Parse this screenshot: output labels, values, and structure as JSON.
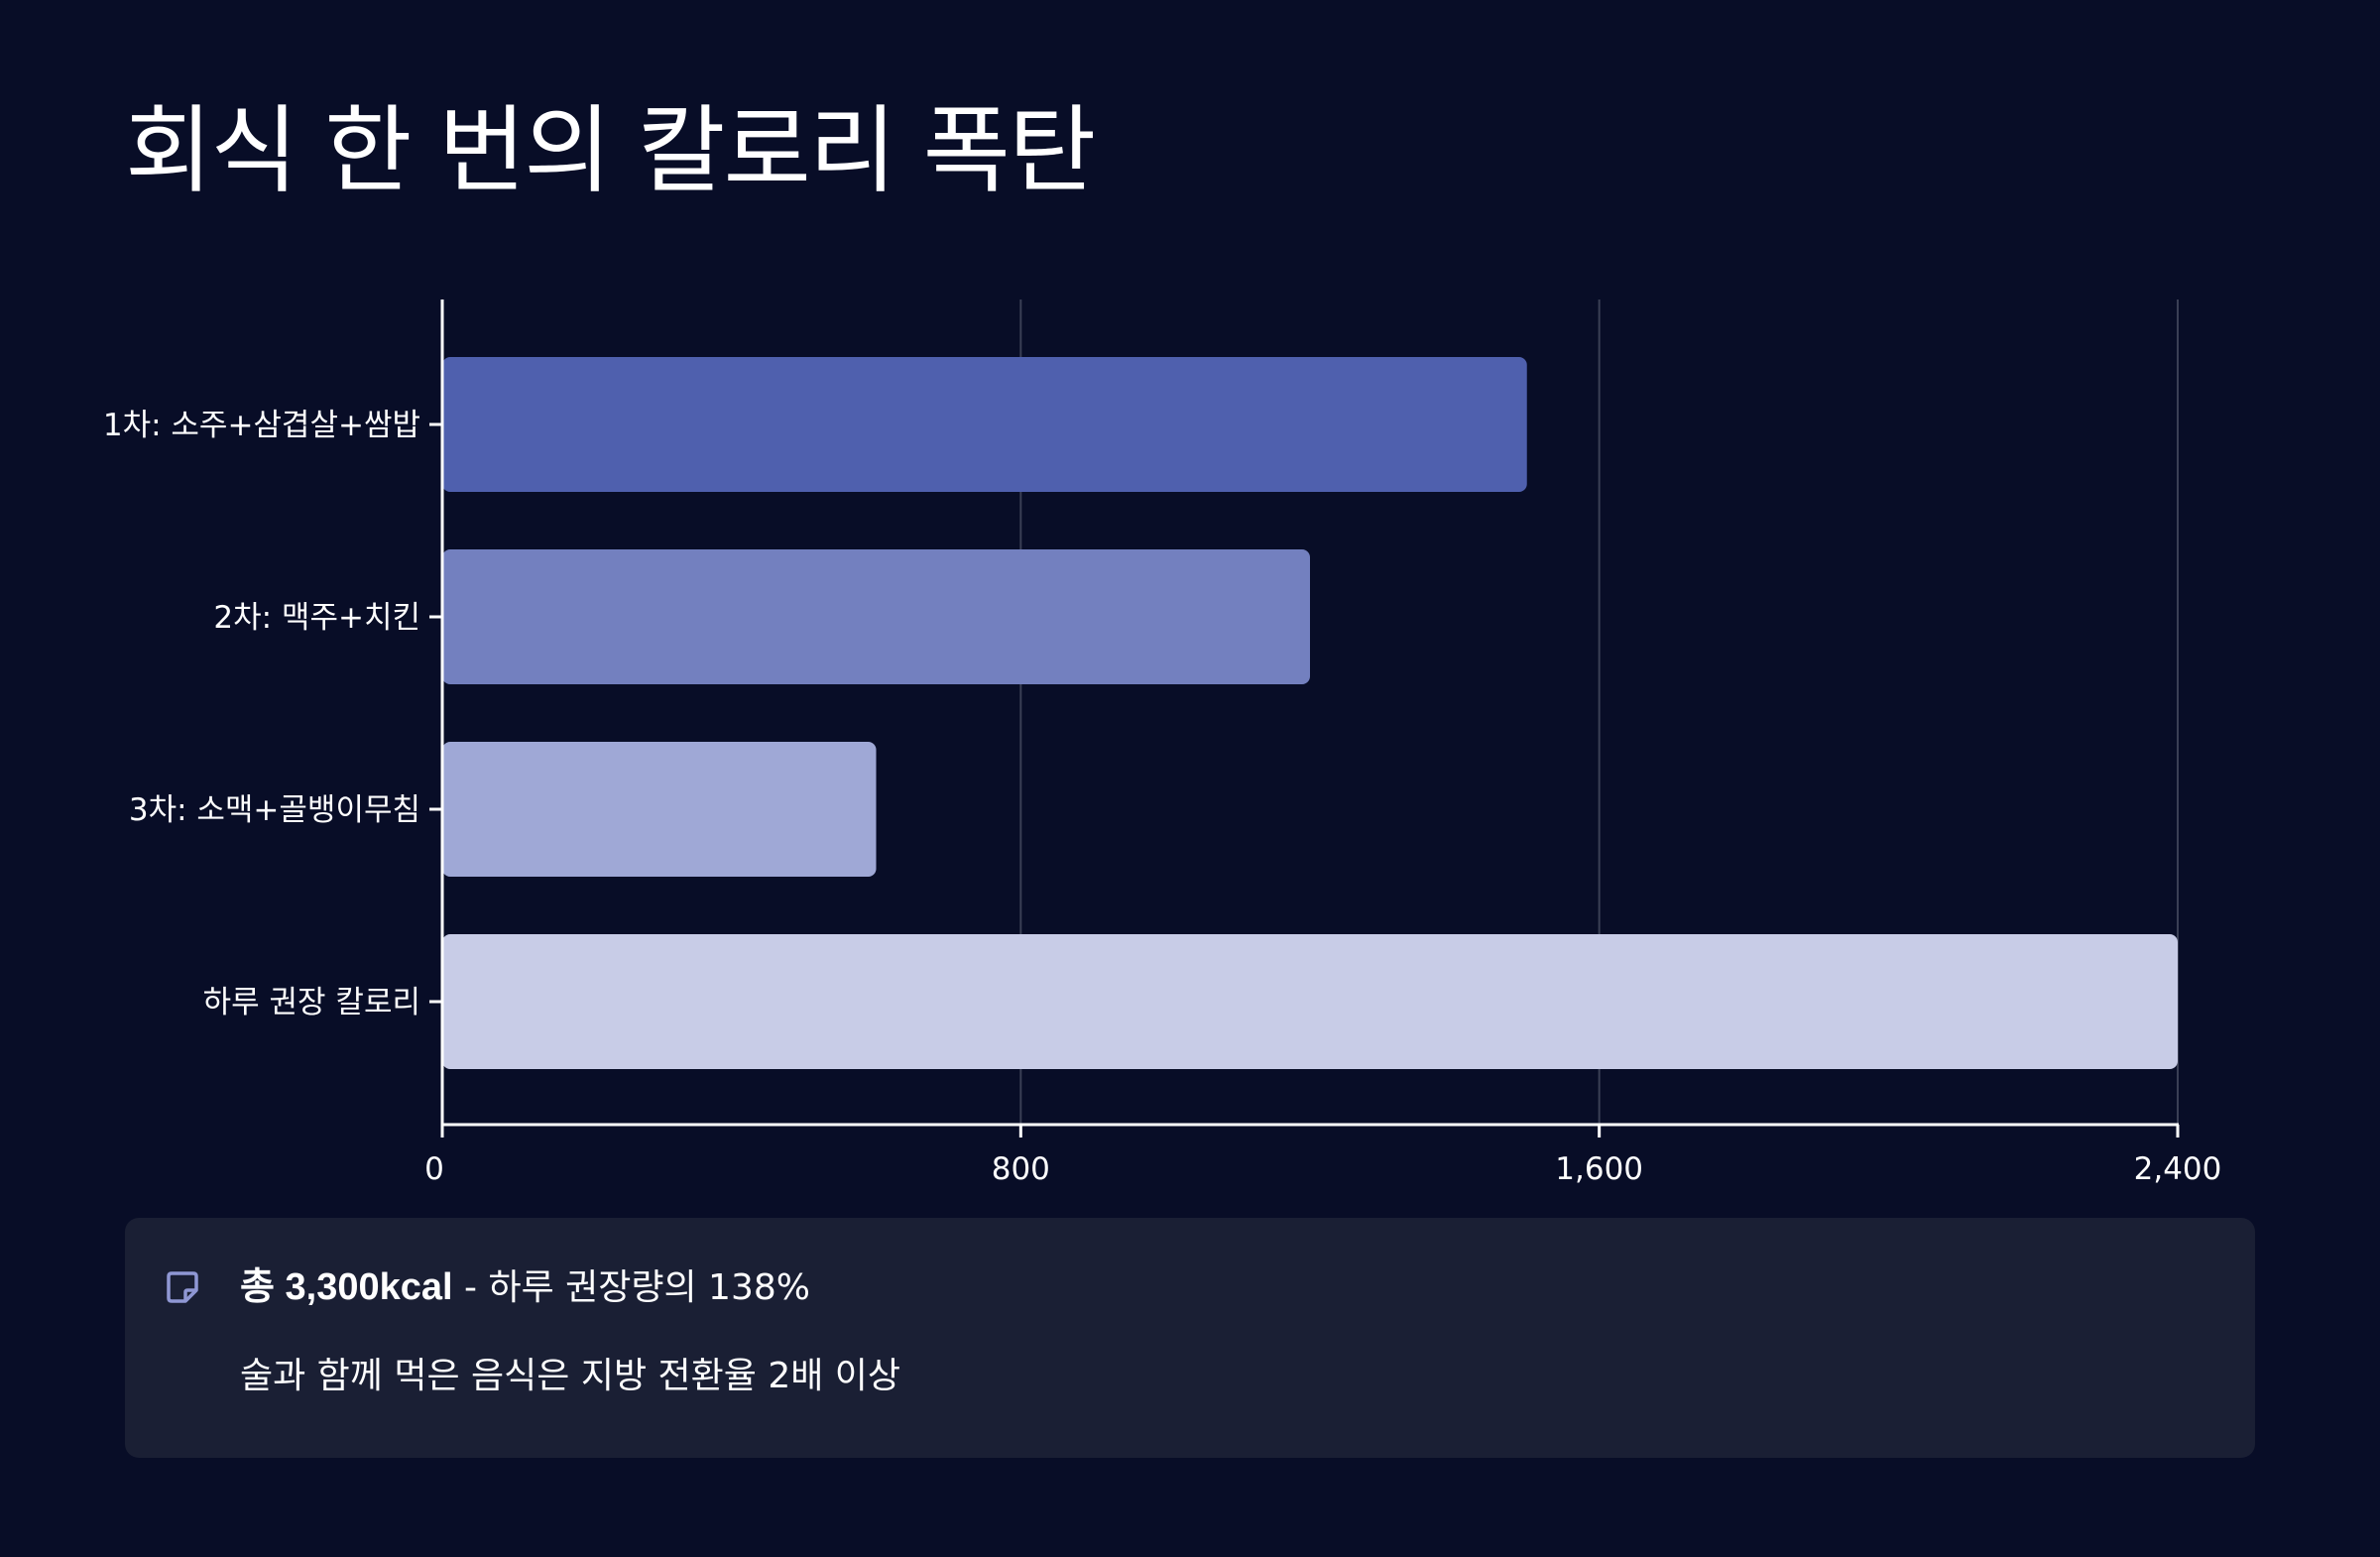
{
  "title": "회식 한 번의 칼로리 폭탄",
  "chart_data": {
    "type": "bar",
    "orientation": "horizontal",
    "title": "회식 한 번의 칼로리 폭탄",
    "xlabel": "",
    "ylabel": "",
    "categories": [
      "1차: 소주+삼겹살+쌈밥",
      "2차: 맥주+치킨",
      "3차: 소맥+골뱅이무침",
      "하루 권장 칼로리"
    ],
    "values": [
      1500,
      1200,
      600,
      2400
    ],
    "bar_colors": [
      "#4f60ae",
      "#7380bf",
      "#9fa8d6",
      "#c8cce7"
    ],
    "xlim": [
      0,
      2400
    ],
    "xticks": [
      0,
      800,
      1600,
      2400
    ],
    "xtick_labels": [
      "0",
      "800",
      "1,600",
      "2,400"
    ],
    "grid": "vertical"
  },
  "note": {
    "icon": "sticky-note-icon",
    "line1_strong": "총 3,300kcal",
    "line1_rest": " - 하루 권장량의 138%",
    "line2": "술과 함께 먹은 음식은 지방 전환율 2배 이상"
  },
  "colors": {
    "background": "#080d27",
    "panel": "#1a1f34",
    "grid": "#3a3f55",
    "axis": "#ffffff",
    "icon": "#8f97d4"
  }
}
